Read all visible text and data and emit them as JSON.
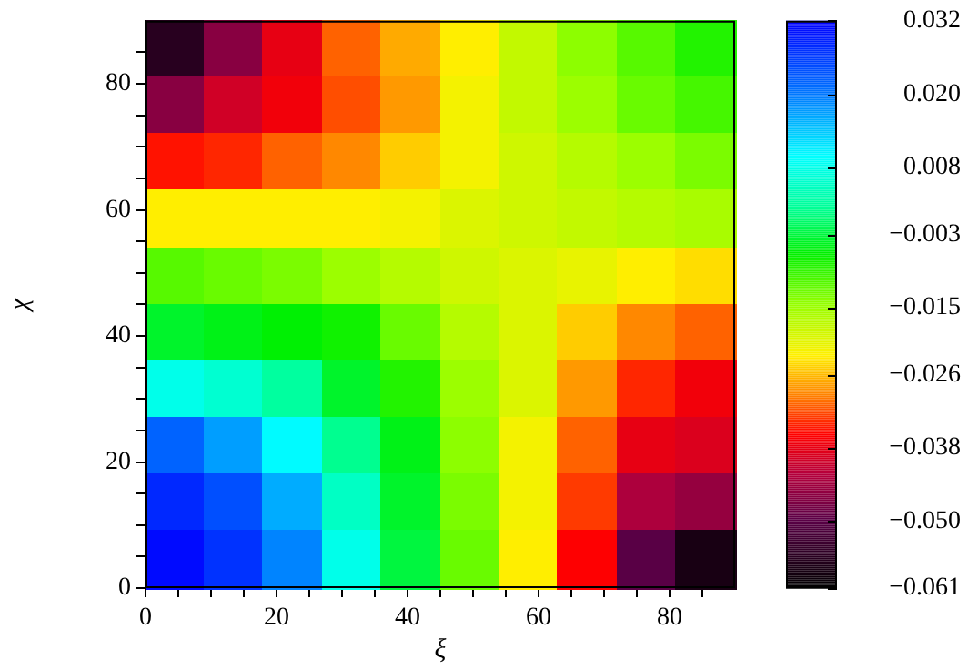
{
  "chart_data": {
    "type": "heatmap",
    "xlabel": "ξ",
    "ylabel": "χ",
    "x": [
      4.5,
      13.5,
      22.5,
      31.5,
      40.5,
      49.5,
      58.5,
      67.5,
      76.5,
      85.5
    ],
    "y": [
      85.5,
      76.5,
      67.5,
      58.5,
      49.5,
      40.5,
      31.5,
      22.5,
      13.5,
      4.5
    ],
    "xlim": [
      0,
      90
    ],
    "ylim": [
      0,
      90
    ],
    "xticks": [
      0,
      {
        "value": 5,
        "label": null
      },
      {
        "value": 10,
        "label": null
      },
      {
        "value": 15,
        "label": null
      },
      20,
      {
        "value": 25,
        "label": null
      },
      {
        "value": 30,
        "label": null
      },
      {
        "value": 35,
        "label": null
      },
      40,
      {
        "value": 45,
        "label": null
      },
      {
        "value": 50,
        "label": null
      },
      {
        "value": 55,
        "label": null
      },
      60,
      {
        "value": 65,
        "label": null
      },
      {
        "value": 70,
        "label": null
      },
      {
        "value": 75,
        "label": null
      },
      80,
      {
        "value": 85,
        "label": null
      }
    ],
    "yticks": [
      0,
      {
        "value": 5,
        "label": null
      },
      {
        "value": 10,
        "label": null
      },
      {
        "value": 15,
        "label": null
      },
      20,
      {
        "value": 25,
        "label": null
      },
      {
        "value": 30,
        "label": null
      },
      {
        "value": 35,
        "label": null
      },
      40,
      {
        "value": 45,
        "label": null
      },
      {
        "value": 50,
        "label": null
      },
      {
        "value": 55,
        "label": null
      },
      60,
      {
        "value": 65,
        "label": null
      },
      {
        "value": 70,
        "label": null
      },
      {
        "value": 75,
        "label": null
      },
      80,
      {
        "value": 85,
        "label": null
      }
    ],
    "cells": [
      [
        -0.056,
        -0.046,
        -0.038,
        -0.031,
        -0.027,
        -0.023,
        -0.018,
        -0.014,
        -0.011,
        -0.008
      ],
      [
        -0.046,
        -0.04,
        -0.037,
        -0.032,
        -0.028,
        -0.022,
        -0.018,
        -0.015,
        -0.012,
        -0.01
      ],
      [
        -0.035,
        -0.034,
        -0.031,
        -0.029,
        -0.025,
        -0.022,
        -0.019,
        -0.017,
        -0.015,
        -0.013
      ],
      [
        -0.023,
        -0.023,
        -0.023,
        -0.023,
        -0.022,
        -0.02,
        -0.019,
        -0.018,
        -0.017,
        -0.016
      ],
      [
        -0.011,
        -0.012,
        -0.013,
        -0.015,
        -0.017,
        -0.019,
        -0.02,
        -0.021,
        -0.023,
        -0.024
      ],
      [
        -0.004,
        -0.005,
        -0.006,
        -0.007,
        -0.012,
        -0.017,
        -0.02,
        -0.025,
        -0.029,
        -0.031
      ],
      [
        0.008,
        0.006,
        0.002,
        -0.004,
        -0.008,
        -0.015,
        -0.02,
        -0.028,
        -0.034,
        -0.037
      ],
      [
        0.022,
        0.017,
        0.01,
        0.001,
        -0.005,
        -0.014,
        -0.022,
        -0.031,
        -0.038,
        -0.039
      ],
      [
        0.028,
        0.024,
        0.016,
        0.005,
        -0.004,
        -0.013,
        -0.022,
        -0.033,
        -0.043,
        -0.045
      ],
      [
        0.031,
        0.027,
        0.019,
        0.008,
        -0.003,
        -0.012,
        -0.023,
        -0.036,
        -0.05,
        -0.058
      ]
    ],
    "clim": [
      -0.061,
      0.032
    ],
    "cticks": [
      {
        "value": -0.061,
        "label": "−0.061"
      },
      {
        "value": -0.05,
        "label": "−0.050"
      },
      {
        "value": -0.038,
        "label": "−0.038"
      },
      {
        "value": -0.026,
        "label": "−0.026"
      },
      {
        "value": -0.015,
        "label": "−0.015"
      },
      {
        "value": -0.003,
        "label": "−0.003"
      },
      {
        "value": 0.008,
        "label": "0.008"
      },
      {
        "value": 0.02,
        "label": "0.020"
      },
      {
        "value": 0.032,
        "label": "0.032"
      }
    ]
  }
}
